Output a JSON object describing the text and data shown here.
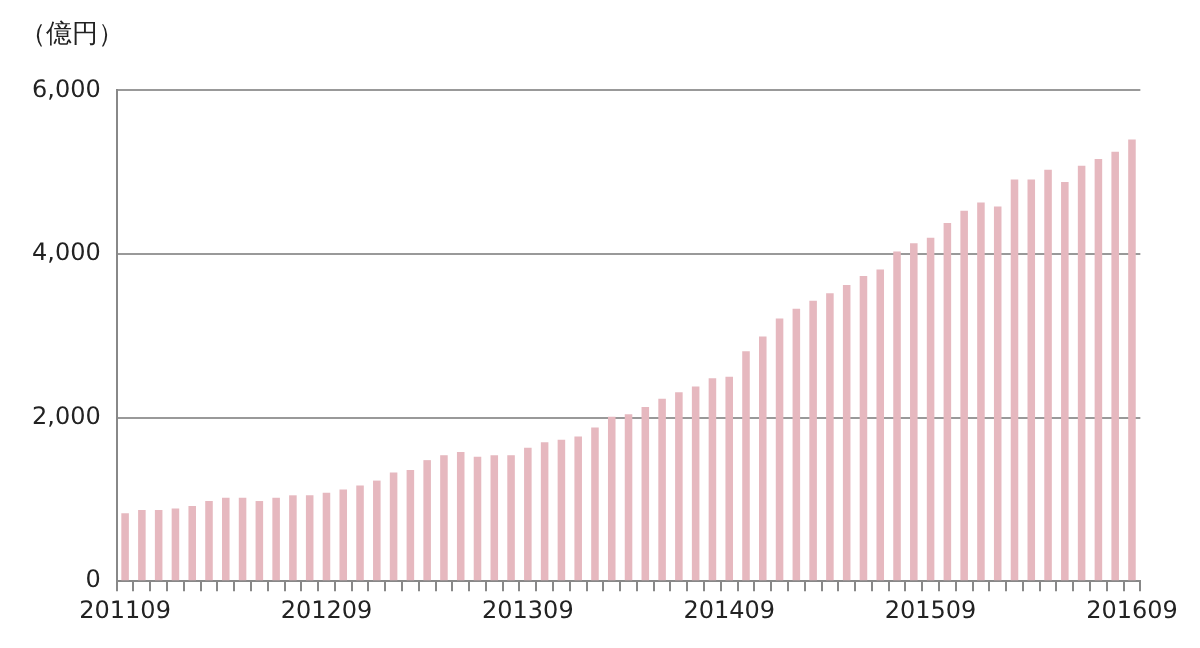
{
  "chart_data": {
    "type": "bar",
    "ylabel": "（億円）",
    "categories": [
      "201109",
      null,
      null,
      null,
      null,
      null,
      null,
      null,
      null,
      null,
      null,
      null,
      "201209",
      null,
      null,
      null,
      null,
      null,
      null,
      null,
      null,
      null,
      null,
      null,
      "201309",
      null,
      null,
      null,
      null,
      null,
      null,
      null,
      null,
      null,
      null,
      null,
      "201409",
      null,
      null,
      null,
      null,
      null,
      null,
      null,
      null,
      null,
      null,
      null,
      "201509",
      null,
      null,
      null,
      null,
      null,
      null,
      null,
      null,
      null,
      null,
      null,
      "201609"
    ],
    "values": [
      830,
      870,
      870,
      890,
      920,
      980,
      1020,
      1020,
      980,
      1020,
      1050,
      1050,
      1080,
      1120,
      1170,
      1230,
      1330,
      1360,
      1480,
      1540,
      1580,
      1520,
      1540,
      1540,
      1630,
      1700,
      1730,
      1770,
      1880,
      2010,
      2040,
      2130,
      2230,
      2310,
      2380,
      2480,
      2500,
      2810,
      2990,
      3210,
      3330,
      3430,
      3520,
      3620,
      3730,
      3810,
      4030,
      4130,
      4200,
      4380,
      4530,
      4630,
      4580,
      4910,
      4910,
      5030,
      4880,
      5080,
      5160,
      5250,
      5400
    ],
    "color": "#e6b8bf",
    "ylim": [
      0,
      6000
    ],
    "yticks": [
      0,
      {
        "value": 2000,
        "label": "2,000"
      },
      {
        "value": 4000,
        "label": "4,000"
      },
      {
        "value": 6000,
        "label": "6,000"
      }
    ],
    "grid": "y"
  }
}
